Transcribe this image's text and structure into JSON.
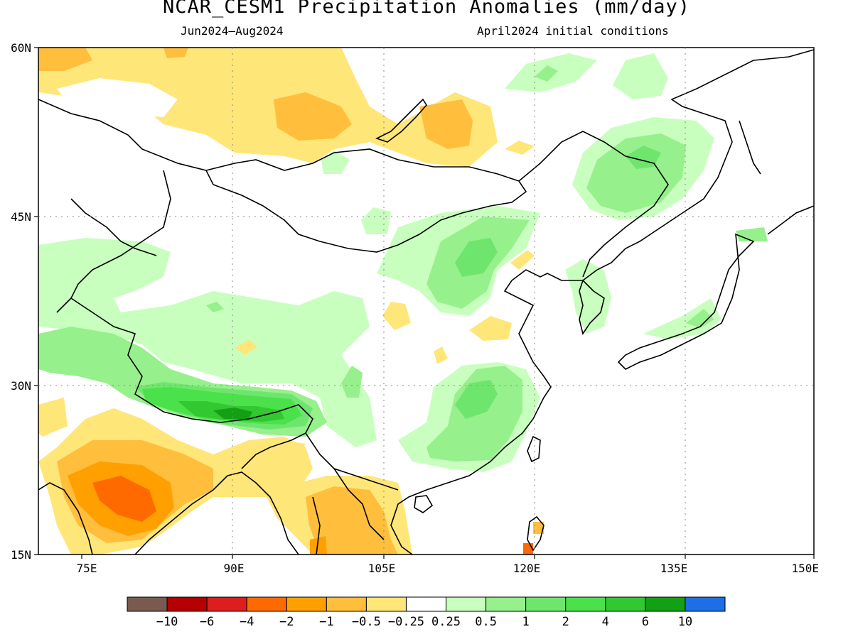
{
  "title": "NCAR_CESM1 Precipitation Anomalies (mm/day)",
  "subtitle_left": "Jun2024–Aug2024",
  "subtitle_right": "April2024 initial conditions",
  "lat_labels": [
    "60N",
    "45N",
    "30N",
    "15N"
  ],
  "lon_labels": [
    "75E",
    "90E",
    "105E",
    "120E",
    "135E",
    "150E"
  ],
  "colorbar": {
    "colors": [
      "#7a5a50",
      "#b40000",
      "#dc1e1e",
      "#ff6a00",
      "#ffa000",
      "#ffbe3c",
      "#ffe678",
      "#ffffff",
      "#c8ffbe",
      "#96f08c",
      "#6ee66e",
      "#4be14b",
      "#32c832",
      "#14a014",
      "#1e6ee6"
    ],
    "tick_labels": [
      "−10",
      "−6",
      "−4",
      "−2",
      "−1",
      "−0.5",
      "−0.25",
      "0.25",
      "0.5",
      "1",
      "2",
      "4",
      "6",
      "10"
    ]
  }
}
